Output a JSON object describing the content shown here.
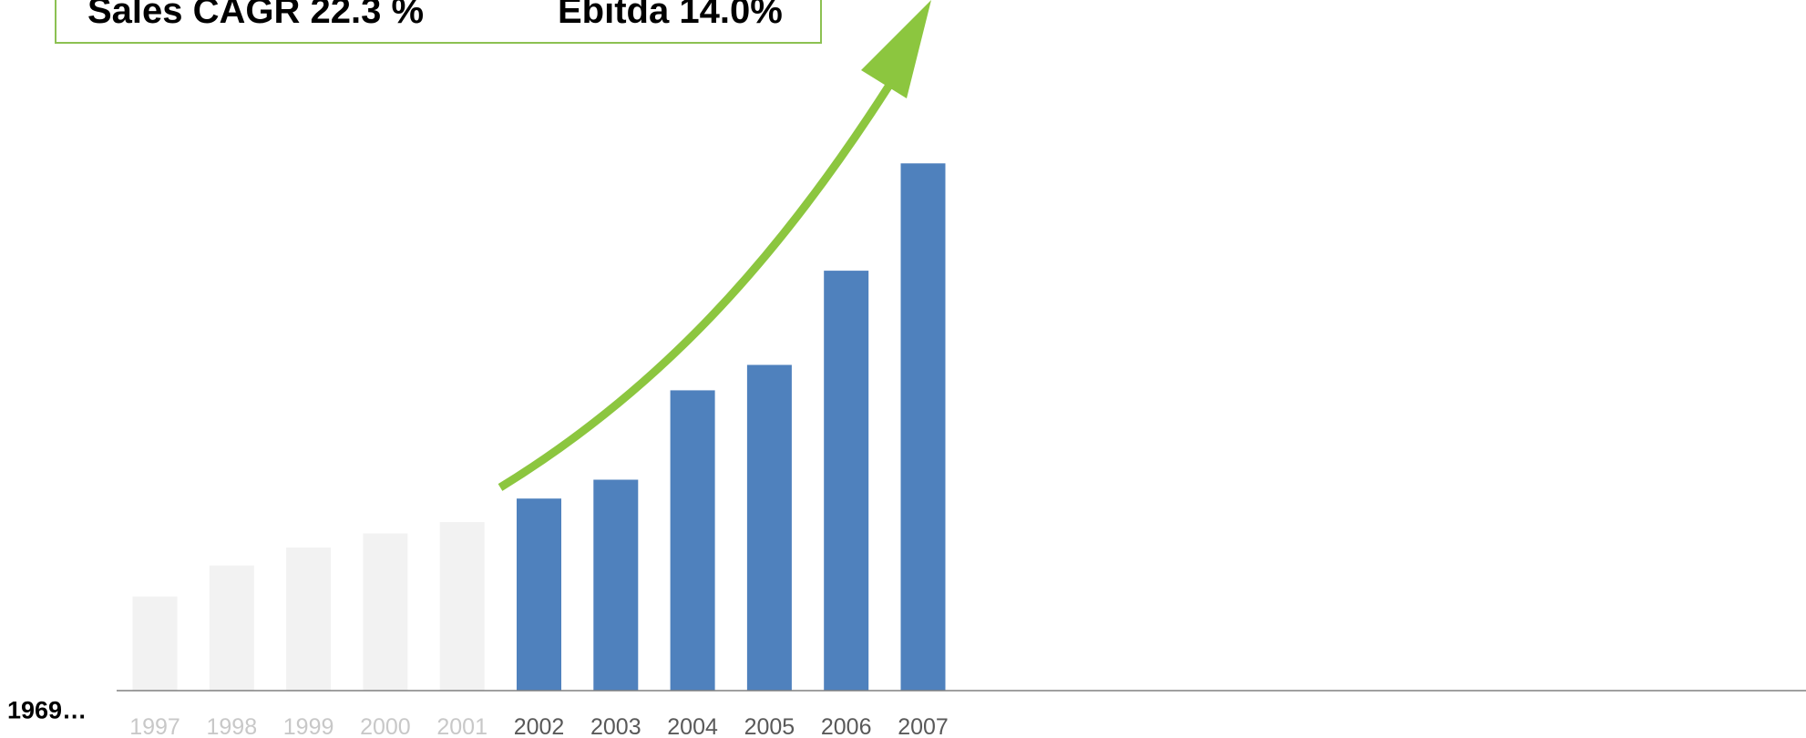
{
  "kpis": {
    "sales_cagr": "Sales CAGR 22.3 %",
    "ebitda": "Ebitda 14.0%"
  },
  "start_label": "1969…",
  "colors": {
    "highlight_bar": "#4f81bd",
    "faded_bar": "#f2f2f2",
    "faded_tick": "#c8c8c8",
    "active_tick": "#595959",
    "arrow": "#8cc63f",
    "axis": "#808080"
  },
  "chart_data": {
    "type": "bar",
    "categories": [
      "1997",
      "1998",
      "1999",
      "2000",
      "2001",
      "2002",
      "2003",
      "2004",
      "2005",
      "2006",
      "2007"
    ],
    "values": [
      100,
      133,
      152,
      167,
      179,
      204,
      224,
      319,
      346,
      446,
      560
    ],
    "highlighted_from": "2002",
    "ylim": [
      0,
      600
    ],
    "annotation": "growth arrow rising from 2002 to 2007"
  }
}
